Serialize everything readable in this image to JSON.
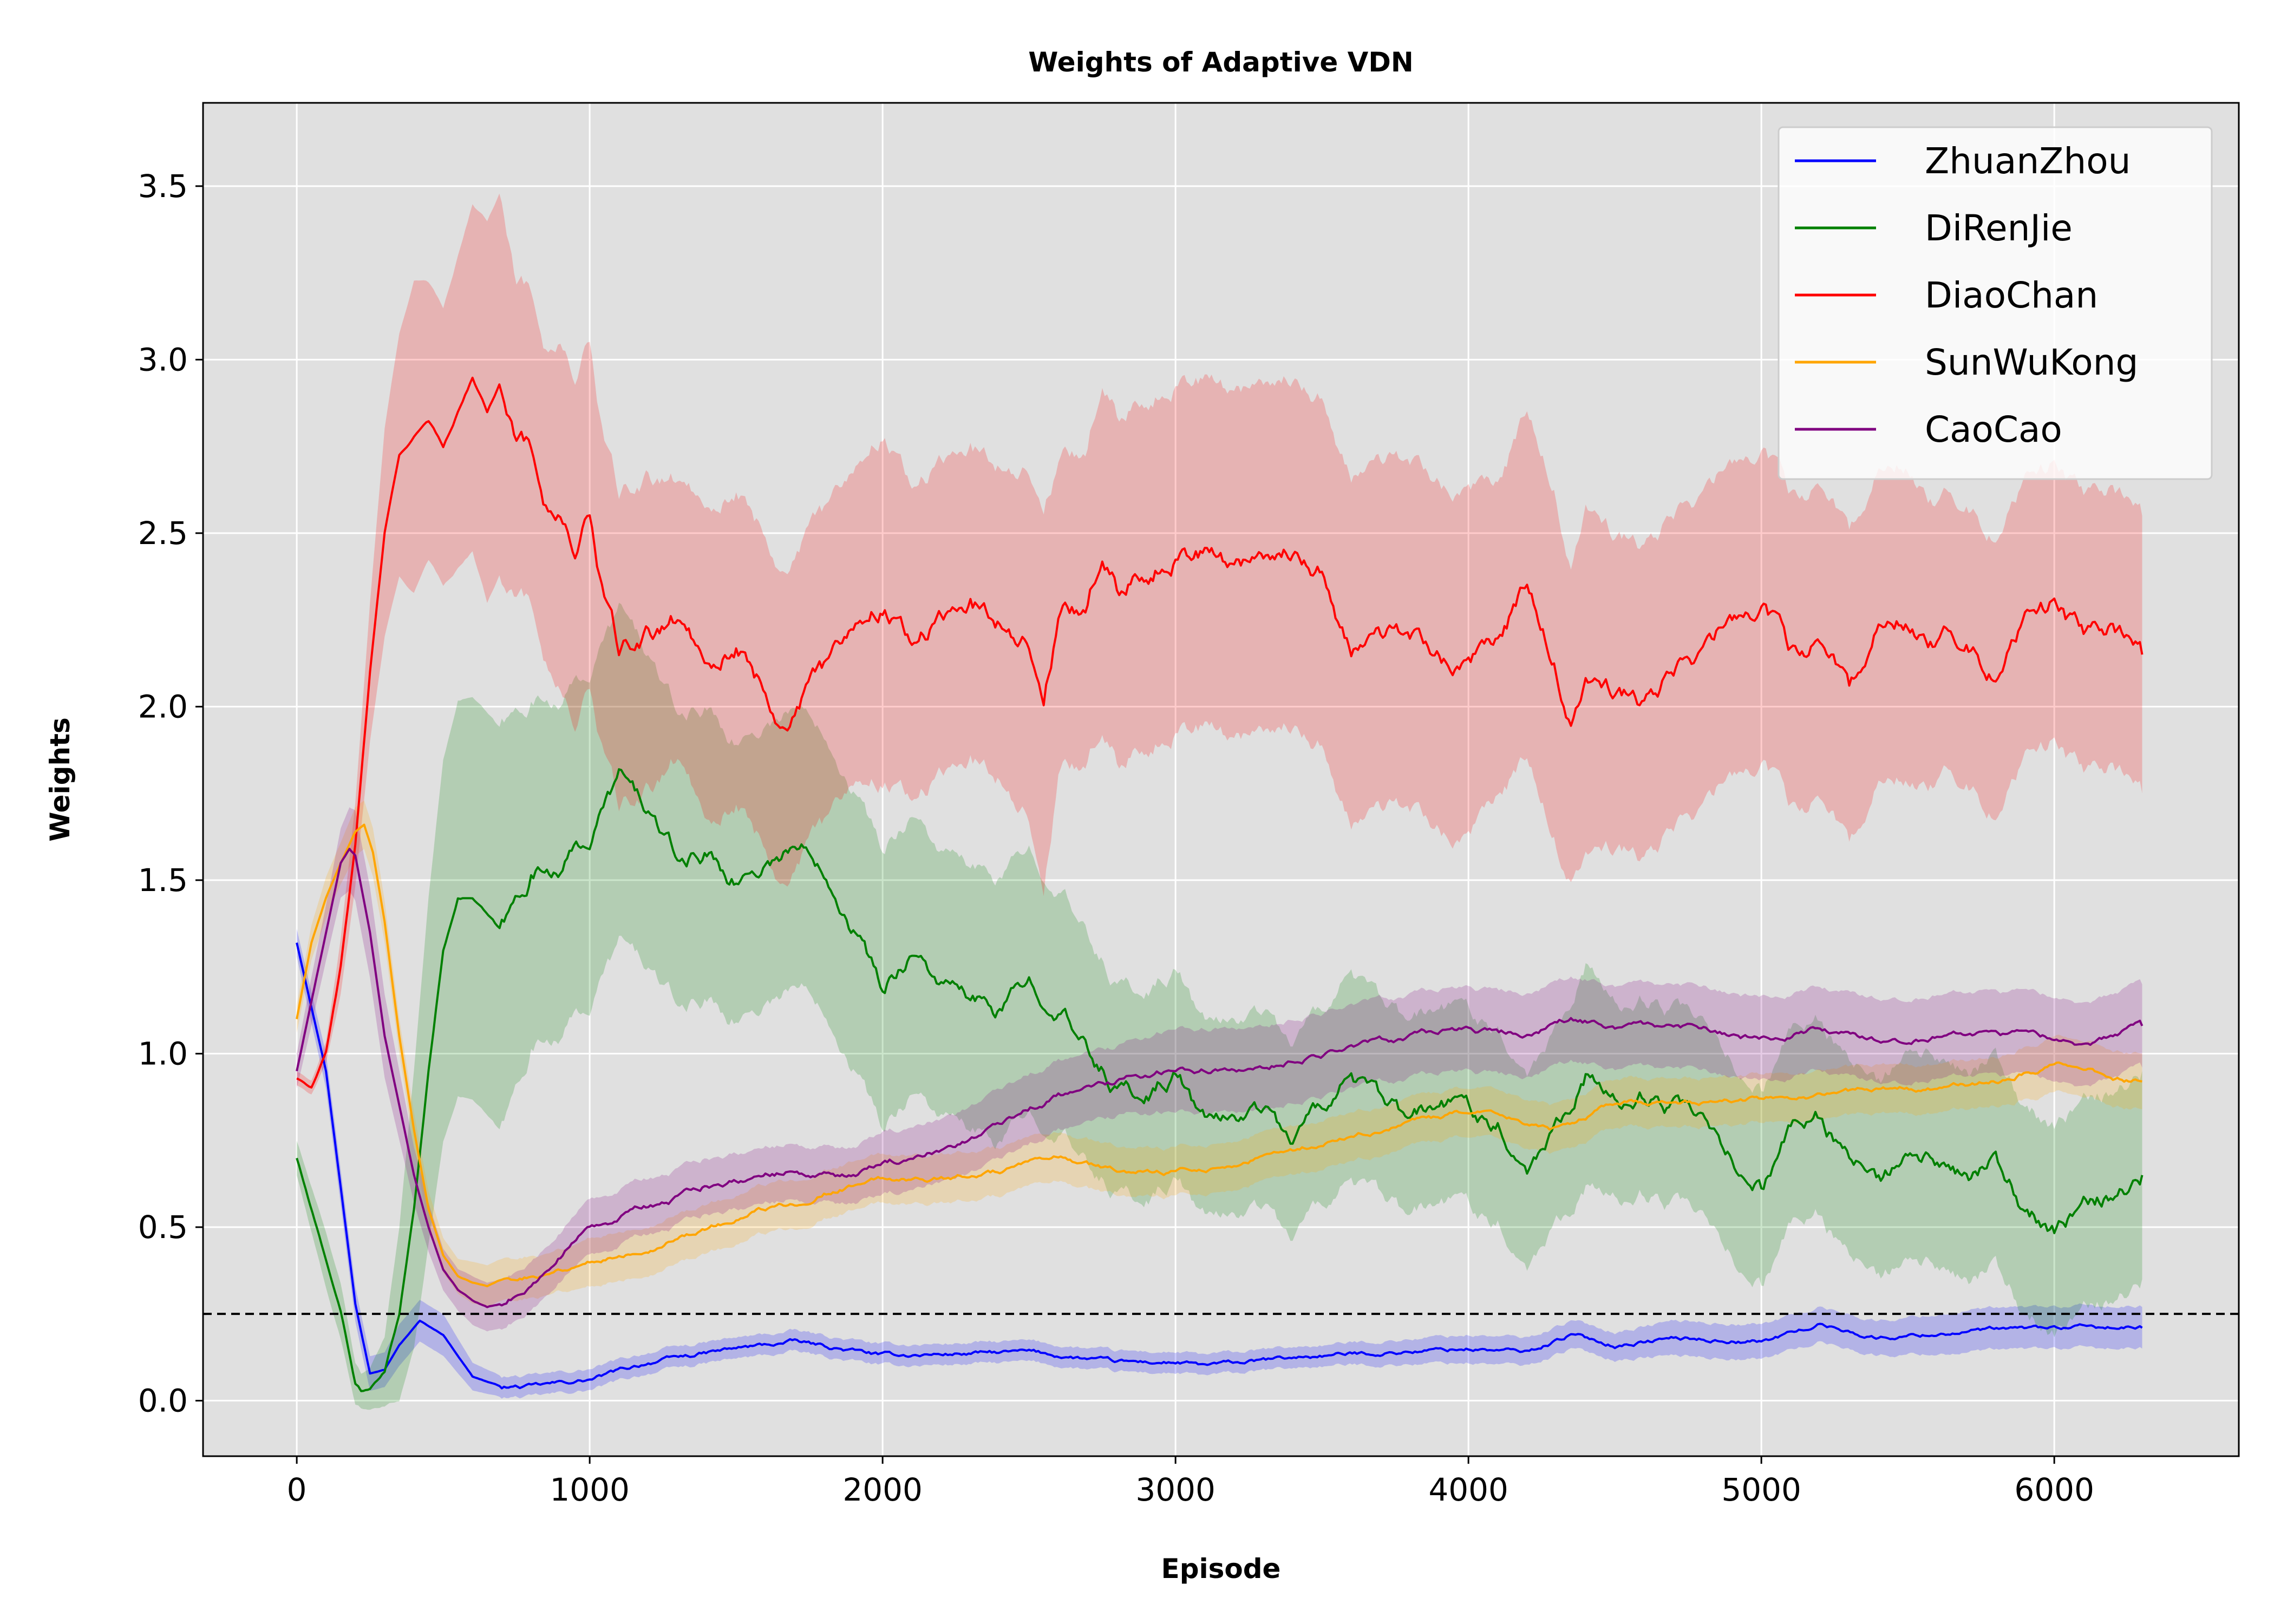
{
  "chart_data": {
    "type": "line",
    "title": "Weights of Adaptive VDN",
    "xlabel": "Episode",
    "ylabel": "Weights",
    "xlim": [
      -320,
      6630
    ],
    "ylim": [
      -0.16,
      3.74
    ],
    "xticks": [
      0,
      1000,
      2000,
      3000,
      4000,
      5000,
      6000
    ],
    "yticks": [
      0.0,
      0.5,
      1.0,
      1.5,
      2.0,
      2.5,
      3.0,
      3.5
    ],
    "xtick_labels": [
      "0",
      "1000",
      "2000",
      "3000",
      "4000",
      "5000",
      "6000"
    ],
    "ytick_labels": [
      "0.0",
      "0.5",
      "1.0",
      "1.5",
      "2.0",
      "2.5",
      "3.0",
      "3.5"
    ],
    "grid": true,
    "background": "#e0e0e0",
    "legend_position": "top-right",
    "reference_line": {
      "y": 0.25,
      "style": "dashed",
      "color": "#000000"
    },
    "series": [
      {
        "name": "ZhuanZhou",
        "color": "#0000ff",
        "x": [
          0,
          100,
          200,
          250,
          300,
          350,
          420,
          500,
          600,
          700,
          800,
          1000,
          1200,
          1500,
          1700,
          2000,
          2500,
          2800,
          3000,
          3100,
          3500,
          4000,
          4200,
          4350,
          4500,
          4700,
          5000,
          5200,
          5400,
          5700,
          6000,
          6300
        ],
        "y": [
          1.32,
          0.95,
          0.28,
          0.08,
          0.09,
          0.16,
          0.23,
          0.19,
          0.07,
          0.04,
          0.04,
          0.06,
          0.11,
          0.15,
          0.17,
          0.13,
          0.14,
          0.11,
          0.11,
          0.1,
          0.13,
          0.15,
          0.14,
          0.19,
          0.16,
          0.18,
          0.17,
          0.22,
          0.18,
          0.2,
          0.21,
          0.21
        ],
        "band": [
          0.04,
          0.05,
          0.05,
          0.05,
          0.05,
          0.06,
          0.06,
          0.06,
          0.04,
          0.03,
          0.03,
          0.03,
          0.03,
          0.03,
          0.03,
          0.03,
          0.03,
          0.03,
          0.03,
          0.03,
          0.03,
          0.04,
          0.04,
          0.04,
          0.04,
          0.05,
          0.05,
          0.05,
          0.05,
          0.06,
          0.06,
          0.06
        ]
      },
      {
        "name": "DiRenJie",
        "color": "#008000",
        "x": [
          0,
          100,
          150,
          200,
          220,
          250,
          300,
          350,
          400,
          450,
          500,
          550,
          600,
          700,
          800,
          900,
          1000,
          1100,
          1200,
          1300,
          1400,
          1500,
          1600,
          1700,
          1800,
          1900,
          2000,
          2100,
          2200,
          2300,
          2400,
          2500,
          2600,
          2700,
          2800,
          2900,
          3000,
          3100,
          3200,
          3300,
          3400,
          3500,
          3600,
          3700,
          3800,
          3900,
          4000,
          4100,
          4200,
          4300,
          4400,
          4500,
          4600,
          4700,
          4800,
          4900,
          5000,
          5100,
          5200,
          5300,
          5400,
          5500,
          5600,
          5700,
          5800,
          5900,
          6000,
          6100,
          6200,
          6300
        ],
        "y": [
          0.7,
          0.4,
          0.26,
          0.05,
          0.03,
          0.03,
          0.08,
          0.25,
          0.55,
          0.95,
          1.3,
          1.45,
          1.45,
          1.35,
          1.52,
          1.55,
          1.62,
          1.8,
          1.7,
          1.55,
          1.58,
          1.5,
          1.55,
          1.6,
          1.55,
          1.38,
          1.18,
          1.3,
          1.2,
          1.15,
          1.12,
          1.2,
          1.15,
          1.0,
          0.9,
          0.88,
          0.95,
          0.8,
          0.82,
          0.85,
          0.75,
          0.85,
          0.95,
          0.85,
          0.8,
          0.85,
          0.85,
          0.8,
          0.68,
          0.8,
          0.95,
          0.85,
          0.88,
          0.85,
          0.78,
          0.68,
          0.62,
          0.78,
          0.82,
          0.7,
          0.62,
          0.68,
          0.68,
          0.62,
          0.68,
          0.55,
          0.48,
          0.55,
          0.6,
          0.65
        ],
        "band": [
          0.05,
          0.08,
          0.08,
          0.06,
          0.05,
          0.06,
          0.1,
          0.25,
          0.4,
          0.5,
          0.55,
          0.57,
          0.58,
          0.58,
          0.5,
          0.48,
          0.48,
          0.48,
          0.45,
          0.42,
          0.42,
          0.4,
          0.4,
          0.4,
          0.4,
          0.4,
          0.4,
          0.4,
          0.38,
          0.38,
          0.38,
          0.38,
          0.35,
          0.33,
          0.3,
          0.3,
          0.3,
          0.28,
          0.28,
          0.28,
          0.28,
          0.28,
          0.3,
          0.28,
          0.28,
          0.28,
          0.28,
          0.28,
          0.28,
          0.28,
          0.32,
          0.28,
          0.28,
          0.28,
          0.28,
          0.28,
          0.28,
          0.28,
          0.28,
          0.28,
          0.28,
          0.3,
          0.3,
          0.3,
          0.3,
          0.3,
          0.3,
          0.3,
          0.3,
          0.3
        ]
      },
      {
        "name": "DiaoChan",
        "color": "#ff0000",
        "x": [
          0,
          50,
          100,
          150,
          200,
          250,
          300,
          350,
          400,
          450,
          500,
          550,
          600,
          650,
          700,
          750,
          800,
          850,
          900,
          950,
          1000,
          1050,
          1100,
          1200,
          1300,
          1400,
          1500,
          1600,
          1650,
          1700,
          1800,
          1900,
          2000,
          2100,
          2200,
          2300,
          2400,
          2500,
          2550,
          2600,
          2700,
          2750,
          2800,
          2900,
          3000,
          3100,
          3200,
          3300,
          3400,
          3500,
          3600,
          3700,
          3800,
          3900,
          4000,
          4100,
          4200,
          4300,
          4350,
          4400,
          4500,
          4600,
          4700,
          4800,
          4900,
          5000,
          5100,
          5200,
          5300,
          5400,
          5500,
          5600,
          5700,
          5800,
          5900,
          6000,
          6100,
          6200,
          6300
        ],
        "y": [
          0.93,
          0.9,
          1.0,
          1.25,
          1.6,
          2.1,
          2.5,
          2.72,
          2.78,
          2.82,
          2.75,
          2.85,
          2.95,
          2.85,
          2.95,
          2.8,
          2.75,
          2.6,
          2.55,
          2.45,
          2.55,
          2.3,
          2.15,
          2.2,
          2.25,
          2.15,
          2.18,
          2.05,
          1.95,
          2.0,
          2.1,
          2.25,
          2.3,
          2.2,
          2.25,
          2.3,
          2.25,
          2.2,
          2.0,
          2.25,
          2.3,
          2.45,
          2.35,
          2.4,
          2.45,
          2.45,
          2.4,
          2.45,
          2.45,
          2.4,
          2.15,
          2.2,
          2.2,
          2.15,
          2.1,
          2.2,
          2.35,
          2.1,
          1.95,
          2.05,
          2.05,
          2.0,
          2.1,
          2.15,
          2.25,
          2.3,
          2.15,
          2.2,
          2.05,
          2.25,
          2.25,
          2.2,
          2.2,
          2.1,
          2.25,
          2.3,
          2.2,
          2.25,
          2.15
        ],
        "band": [
          0.02,
          0.02,
          0.03,
          0.08,
          0.12,
          0.2,
          0.3,
          0.35,
          0.45,
          0.4,
          0.4,
          0.45,
          0.5,
          0.55,
          0.55,
          0.45,
          0.45,
          0.45,
          0.5,
          0.5,
          0.5,
          0.45,
          0.45,
          0.45,
          0.4,
          0.45,
          0.45,
          0.45,
          0.45,
          0.45,
          0.45,
          0.45,
          0.5,
          0.45,
          0.45,
          0.45,
          0.45,
          0.5,
          0.55,
          0.45,
          0.45,
          0.5,
          0.5,
          0.5,
          0.5,
          0.5,
          0.5,
          0.5,
          0.5,
          0.5,
          0.5,
          0.5,
          0.5,
          0.5,
          0.5,
          0.45,
          0.5,
          0.5,
          0.45,
          0.5,
          0.45,
          0.45,
          0.45,
          0.45,
          0.45,
          0.45,
          0.45,
          0.45,
          0.45,
          0.45,
          0.45,
          0.4,
          0.4,
          0.4,
          0.4,
          0.4,
          0.4,
          0.4,
          0.4
        ]
      },
      {
        "name": "SunWuKong",
        "color": "#ffa500",
        "x": [
          0,
          50,
          100,
          150,
          200,
          230,
          260,
          300,
          350,
          400,
          450,
          500,
          550,
          600,
          650,
          700,
          800,
          900,
          1000,
          1100,
          1200,
          1300,
          1400,
          1500,
          1600,
          1700,
          1800,
          1900,
          2000,
          2200,
          2400,
          2600,
          2800,
          3000,
          3200,
          3400,
          3600,
          3800,
          4000,
          4100,
          4200,
          4300,
          4400,
          4500,
          4700,
          5000,
          5200,
          5400,
          5600,
          5800,
          6000,
          6100,
          6200,
          6300
        ],
        "y": [
          1.1,
          1.32,
          1.45,
          1.55,
          1.64,
          1.66,
          1.58,
          1.38,
          1.05,
          0.78,
          0.55,
          0.42,
          0.36,
          0.34,
          0.33,
          0.35,
          0.36,
          0.38,
          0.4,
          0.42,
          0.44,
          0.47,
          0.5,
          0.52,
          0.55,
          0.57,
          0.6,
          0.62,
          0.64,
          0.64,
          0.66,
          0.7,
          0.66,
          0.66,
          0.68,
          0.72,
          0.76,
          0.8,
          0.83,
          0.82,
          0.8,
          0.78,
          0.82,
          0.86,
          0.86,
          0.87,
          0.88,
          0.9,
          0.9,
          0.92,
          0.97,
          0.96,
          0.93,
          0.92
        ],
        "band": [
          0.04,
          0.05,
          0.06,
          0.06,
          0.07,
          0.07,
          0.07,
          0.06,
          0.05,
          0.05,
          0.05,
          0.05,
          0.05,
          0.06,
          0.06,
          0.06,
          0.06,
          0.06,
          0.07,
          0.07,
          0.07,
          0.07,
          0.07,
          0.07,
          0.07,
          0.07,
          0.07,
          0.07,
          0.07,
          0.07,
          0.07,
          0.07,
          0.07,
          0.07,
          0.07,
          0.07,
          0.07,
          0.07,
          0.07,
          0.07,
          0.07,
          0.07,
          0.07,
          0.07,
          0.07,
          0.07,
          0.07,
          0.07,
          0.07,
          0.07,
          0.08,
          0.08,
          0.08,
          0.08
        ]
      },
      {
        "name": "CaoCao",
        "color": "#800080",
        "x": [
          0,
          50,
          100,
          150,
          180,
          200,
          250,
          300,
          350,
          400,
          450,
          500,
          550,
          600,
          650,
          700,
          800,
          900,
          1000,
          1100,
          1200,
          1300,
          1400,
          1500,
          1600,
          1700,
          1800,
          1900,
          2000,
          2200,
          2400,
          2600,
          2800,
          3000,
          3200,
          3400,
          3600,
          3800,
          4000,
          4200,
          4350,
          4500,
          4700,
          5000,
          5200,
          5400,
          5600,
          5800,
          6000,
          6100,
          6200,
          6300
        ],
        "y": [
          0.95,
          1.15,
          1.35,
          1.55,
          1.59,
          1.57,
          1.35,
          1.05,
          0.85,
          0.65,
          0.5,
          0.38,
          0.32,
          0.29,
          0.27,
          0.28,
          0.33,
          0.42,
          0.5,
          0.53,
          0.56,
          0.58,
          0.62,
          0.64,
          0.65,
          0.66,
          0.65,
          0.64,
          0.68,
          0.72,
          0.8,
          0.88,
          0.92,
          0.96,
          0.95,
          0.98,
          1.02,
          1.05,
          1.07,
          1.05,
          1.1,
          1.08,
          1.08,
          1.04,
          1.07,
          1.04,
          1.05,
          1.06,
          1.05,
          1.02,
          1.05,
          1.08
        ],
        "band": [
          0.05,
          0.07,
          0.08,
          0.1,
          0.12,
          0.13,
          0.13,
          0.12,
          0.1,
          0.08,
          0.07,
          0.06,
          0.06,
          0.07,
          0.07,
          0.07,
          0.07,
          0.07,
          0.08,
          0.08,
          0.08,
          0.08,
          0.08,
          0.08,
          0.08,
          0.08,
          0.08,
          0.08,
          0.09,
          0.09,
          0.1,
          0.1,
          0.1,
          0.12,
          0.12,
          0.12,
          0.12,
          0.12,
          0.12,
          0.12,
          0.12,
          0.12,
          0.12,
          0.12,
          0.12,
          0.12,
          0.12,
          0.12,
          0.12,
          0.12,
          0.12,
          0.12
        ]
      }
    ]
  }
}
